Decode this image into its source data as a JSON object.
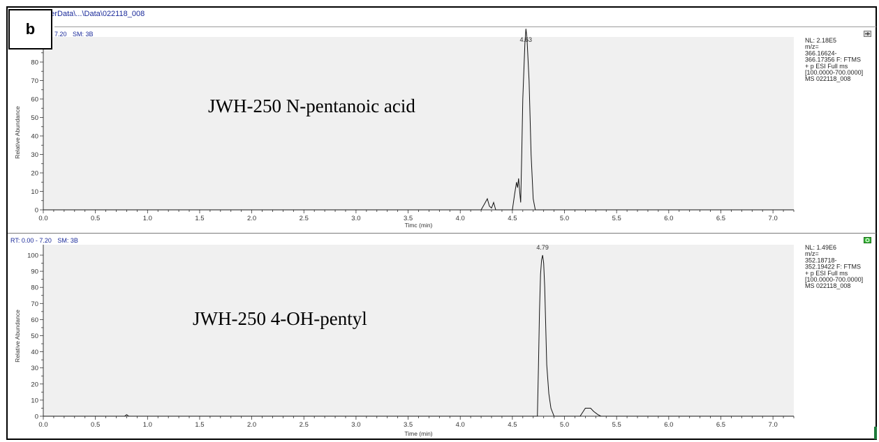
{
  "window": {
    "path": "nderData\\...\\Data\\022118_008",
    "panel_tag": "b"
  },
  "panels": [
    {
      "header_rt": "7.20",
      "header_sm": "SM: 3B",
      "label": "JWH-250 N-pentanoic acid",
      "peak_label": "4.63",
      "nl_info": [
        "NL: 2.18E5",
        "m/z=",
        "366.16624-",
        "366.17356 F: FTMS",
        "+ p ESI Full ms",
        "[100.0000-700.0000]",
        "MS 022118_008"
      ],
      "xlabel": "Timc (min)",
      "ylabel": "Relative Abundance"
    },
    {
      "header_rt": "RT: 0.00 - 7.20",
      "header_sm": "SM: 3B",
      "label": "JWH-250 4-OH-pentyl",
      "peak_label": "4.79",
      "nl_info": [
        "NL: 1.49E6",
        "m/z=",
        "352.18718-",
        "352.19422 F: FTMS",
        "+ p ESI Full ms",
        "[100.0000-700.0000]",
        "MS 022118_008"
      ],
      "xlabel": "Time (min)",
      "ylabel": "Relative Abundance"
    }
  ],
  "chart_data": [
    {
      "type": "line",
      "title": "JWH-250 N-pentanoic acid",
      "xlabel": "Timc (min)",
      "ylabel": "Relative Abundance",
      "xlim": [
        0.0,
        7.2
      ],
      "ylim": [
        0,
        100
      ],
      "x_ticks": [
        "0.0",
        "0.5",
        "1.0",
        "1.5",
        "2.0",
        "2.5",
        "3.0",
        "3.5",
        "4.0",
        "4.5",
        "5.0",
        "5.5",
        "6.0",
        "6.5",
        "7.0"
      ],
      "y_ticks": [
        "0",
        "10",
        "20",
        "30",
        "40",
        "50",
        "60",
        "70",
        "80",
        "90"
      ],
      "peak_annotation": {
        "x": 4.63,
        "label": "4.63"
      },
      "series": [
        {
          "x": [
            0.0,
            4.2,
            4.23,
            4.26,
            4.28,
            4.3,
            4.32,
            4.34,
            4.36,
            4.38,
            4.5,
            4.52,
            4.54,
            4.55,
            4.56,
            4.57,
            4.58,
            4.59,
            4.6,
            4.62,
            4.63,
            4.64,
            4.66,
            4.68,
            4.7,
            4.72,
            7.2
          ],
          "y": [
            0,
            0,
            3,
            6,
            2,
            1,
            4,
            0,
            0,
            0,
            0,
            8,
            15,
            12,
            17,
            10,
            4,
            30,
            60,
            90,
            98,
            93,
            70,
            30,
            6,
            0,
            0
          ]
        }
      ]
    },
    {
      "type": "line",
      "title": "JWH-250 4-OH-pentyl",
      "xlabel": "Time (min)",
      "ylabel": "Relative Abundance",
      "xlim": [
        0.0,
        7.2
      ],
      "ylim": [
        0,
        100
      ],
      "x_ticks": [
        "0.0",
        "0.5",
        "1.0",
        "1.5",
        "2.0",
        "2.5",
        "3.0",
        "3.5",
        "4.0",
        "4.5",
        "5.0",
        "5.5",
        "6.0",
        "6.5",
        "7.0"
      ],
      "y_ticks": [
        "0",
        "10",
        "20",
        "30",
        "40",
        "50",
        "60",
        "70",
        "80",
        "90",
        "100"
      ],
      "peak_annotation": {
        "x": 4.79,
        "label": "4.79"
      },
      "series": [
        {
          "x": [
            0.0,
            0.78,
            0.8,
            0.82,
            4.74,
            4.75,
            4.76,
            4.77,
            4.78,
            4.79,
            4.8,
            4.81,
            4.82,
            4.83,
            4.85,
            4.87,
            4.9,
            5.15,
            5.18,
            5.2,
            5.22,
            5.25,
            5.28,
            5.32,
            5.35,
            7.2
          ],
          "y": [
            0,
            0,
            1,
            0,
            0,
            30,
            65,
            88,
            97,
            100,
            95,
            80,
            55,
            32,
            14,
            5,
            0,
            0,
            3,
            5,
            5,
            5,
            3,
            1,
            0,
            0
          ]
        }
      ]
    }
  ]
}
